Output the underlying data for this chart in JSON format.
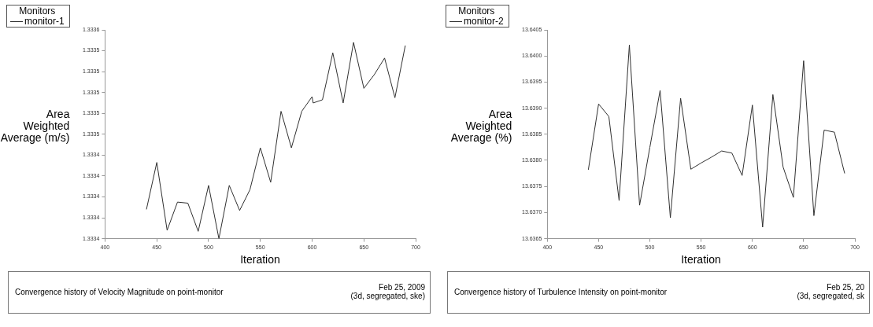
{
  "chart_data": [
    {
      "type": "line",
      "legend_title": "Monitors",
      "legend": "top left",
      "grid": false,
      "xlabel": "Iteration",
      "ylabel": "Area Weighted Average (m/s)",
      "xlim": [
        400,
        700
      ],
      "xticks": [
        400,
        450,
        500,
        550,
        600,
        650,
        700
      ],
      "ylim": [
        1.33336,
        1.33356
      ],
      "yticks": [
        {
          "value": 1.33336,
          "label": "1.3334"
        },
        {
          "value": 1.33338,
          "label": "1.3334"
        },
        {
          "value": 1.3334,
          "label": "1.3334"
        },
        {
          "value": 1.33342,
          "label": "1.3334"
        },
        {
          "value": 1.33344,
          "label": "1.3334"
        },
        {
          "value": 1.33346,
          "label": "1.3335"
        },
        {
          "value": 1.33348,
          "label": "1.3335"
        },
        {
          "value": 1.3335,
          "label": "1.3335"
        },
        {
          "value": 1.33352,
          "label": "1.3335"
        },
        {
          "value": 1.33354,
          "label": "1.3335"
        },
        {
          "value": 1.33356,
          "label": "1.3336"
        }
      ],
      "series": [
        {
          "name": "monitor-1",
          "color": "#303030",
          "x": [
            440,
            450,
            460,
            470,
            480,
            490,
            500,
            510,
            520,
            530,
            540,
            550,
            560,
            570,
            580,
            590,
            600,
            601,
            610,
            620,
            630,
            640,
            650,
            660,
            670,
            680,
            690
          ],
          "values": [
            1.333388,
            1.333433,
            1.333368,
            1.333395,
            1.333394,
            1.333367,
            1.333411,
            1.33336,
            1.333411,
            1.333387,
            1.333407,
            1.333447,
            1.333414,
            1.333482,
            1.333447,
            1.333482,
            1.333496,
            1.33349,
            1.333493,
            1.333538,
            1.33349,
            1.333548,
            1.333504,
            1.333517,
            1.333533,
            1.333495,
            1.333545
          ]
        }
      ],
      "annotations": [
        "Convergence history of Velocity Magnitude on point-monitor",
        "Feb 25, 2009",
        "(3d, segregated, ske)"
      ]
    },
    {
      "type": "line",
      "legend_title": "Monitors",
      "legend": "top left",
      "grid": false,
      "xlabel": "Iteration",
      "ylabel": "Area Weighted Average (%)",
      "xlim": [
        400,
        700
      ],
      "xticks": [
        400,
        450,
        500,
        550,
        600,
        650,
        700
      ],
      "ylim": [
        13.6365,
        13.6405
      ],
      "yticks": [
        {
          "value": 13.6365,
          "label": "13.6365"
        },
        {
          "value": 13.637,
          "label": "13.6370"
        },
        {
          "value": 13.6375,
          "label": "13.6375"
        },
        {
          "value": 13.638,
          "label": "13.6380"
        },
        {
          "value": 13.6385,
          "label": "13.6385"
        },
        {
          "value": 13.639,
          "label": "13.6390"
        },
        {
          "value": 13.6395,
          "label": "13.6395"
        },
        {
          "value": 13.64,
          "label": "13.6400"
        },
        {
          "value": 13.6405,
          "label": "13.6405"
        }
      ],
      "series": [
        {
          "name": "monitor-2",
          "color": "#303030",
          "x": [
            440,
            450,
            460,
            470,
            480,
            490,
            500,
            510,
            520,
            530,
            540,
            550,
            560,
            570,
            580,
            590,
            600,
            610,
            620,
            630,
            640,
            650,
            660,
            670,
            680,
            690
          ],
          "values": [
            13.63782,
            13.63908,
            13.63884,
            13.63723,
            13.64021,
            13.63714,
            13.63825,
            13.63934,
            13.6369,
            13.63919,
            13.63783,
            13.63795,
            13.63806,
            13.63818,
            13.63814,
            13.63771,
            13.63906,
            13.63672,
            13.63926,
            13.63787,
            13.63729,
            13.63991,
            13.63694,
            13.63858,
            13.63854,
            13.63775
          ]
        }
      ],
      "annotations": [
        "Convergence history of Turbulence Intensity on point-monitor",
        "Feb 25, 20",
        "(3d, segregated, sk"
      ]
    }
  ]
}
